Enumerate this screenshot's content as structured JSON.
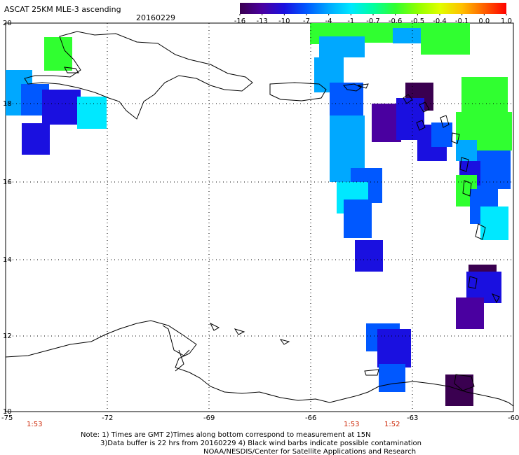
{
  "title": "ASCAT 25KM MLE-3 ascending",
  "date": "20160229",
  "colorbar": {
    "labels": [
      "-16",
      "-13",
      "-10",
      "-7",
      "-4",
      "-1",
      "-0.7",
      "-0.6",
      "-0.5",
      "-0.4",
      "-0.1",
      "0.0",
      "1.0"
    ],
    "colors": [
      "#3a0050",
      "#4a00a0",
      "#1a10e0",
      "#0058ff",
      "#00a8ff",
      "#00e8ff",
      "#00ffa0",
      "#30ff30",
      "#90ff00",
      "#e0ff00",
      "#ffc000",
      "#ff6000",
      "#ff0000"
    ]
  },
  "axes": {
    "lon_labels": [
      "-75",
      "-72",
      "-69",
      "-66",
      "-63",
      "-60"
    ],
    "lat_labels": [
      "20",
      "18",
      "16",
      "14",
      "12",
      "10"
    ]
  },
  "time_labels": [
    "1:53",
    "1:53",
    "1:52"
  ],
  "time_color": "#cc2200",
  "notes": {
    "line1": "Note: 1) Times are GMT 2)Times along bottom correspond to measurement at 15N",
    "line2": "3)Data buffer is 22 hrs from 20160229 4) Black wind barbs indicate possible contamination",
    "line3": "NOAA/NESDIS/Center for Satellite Applications and Research"
  }
}
